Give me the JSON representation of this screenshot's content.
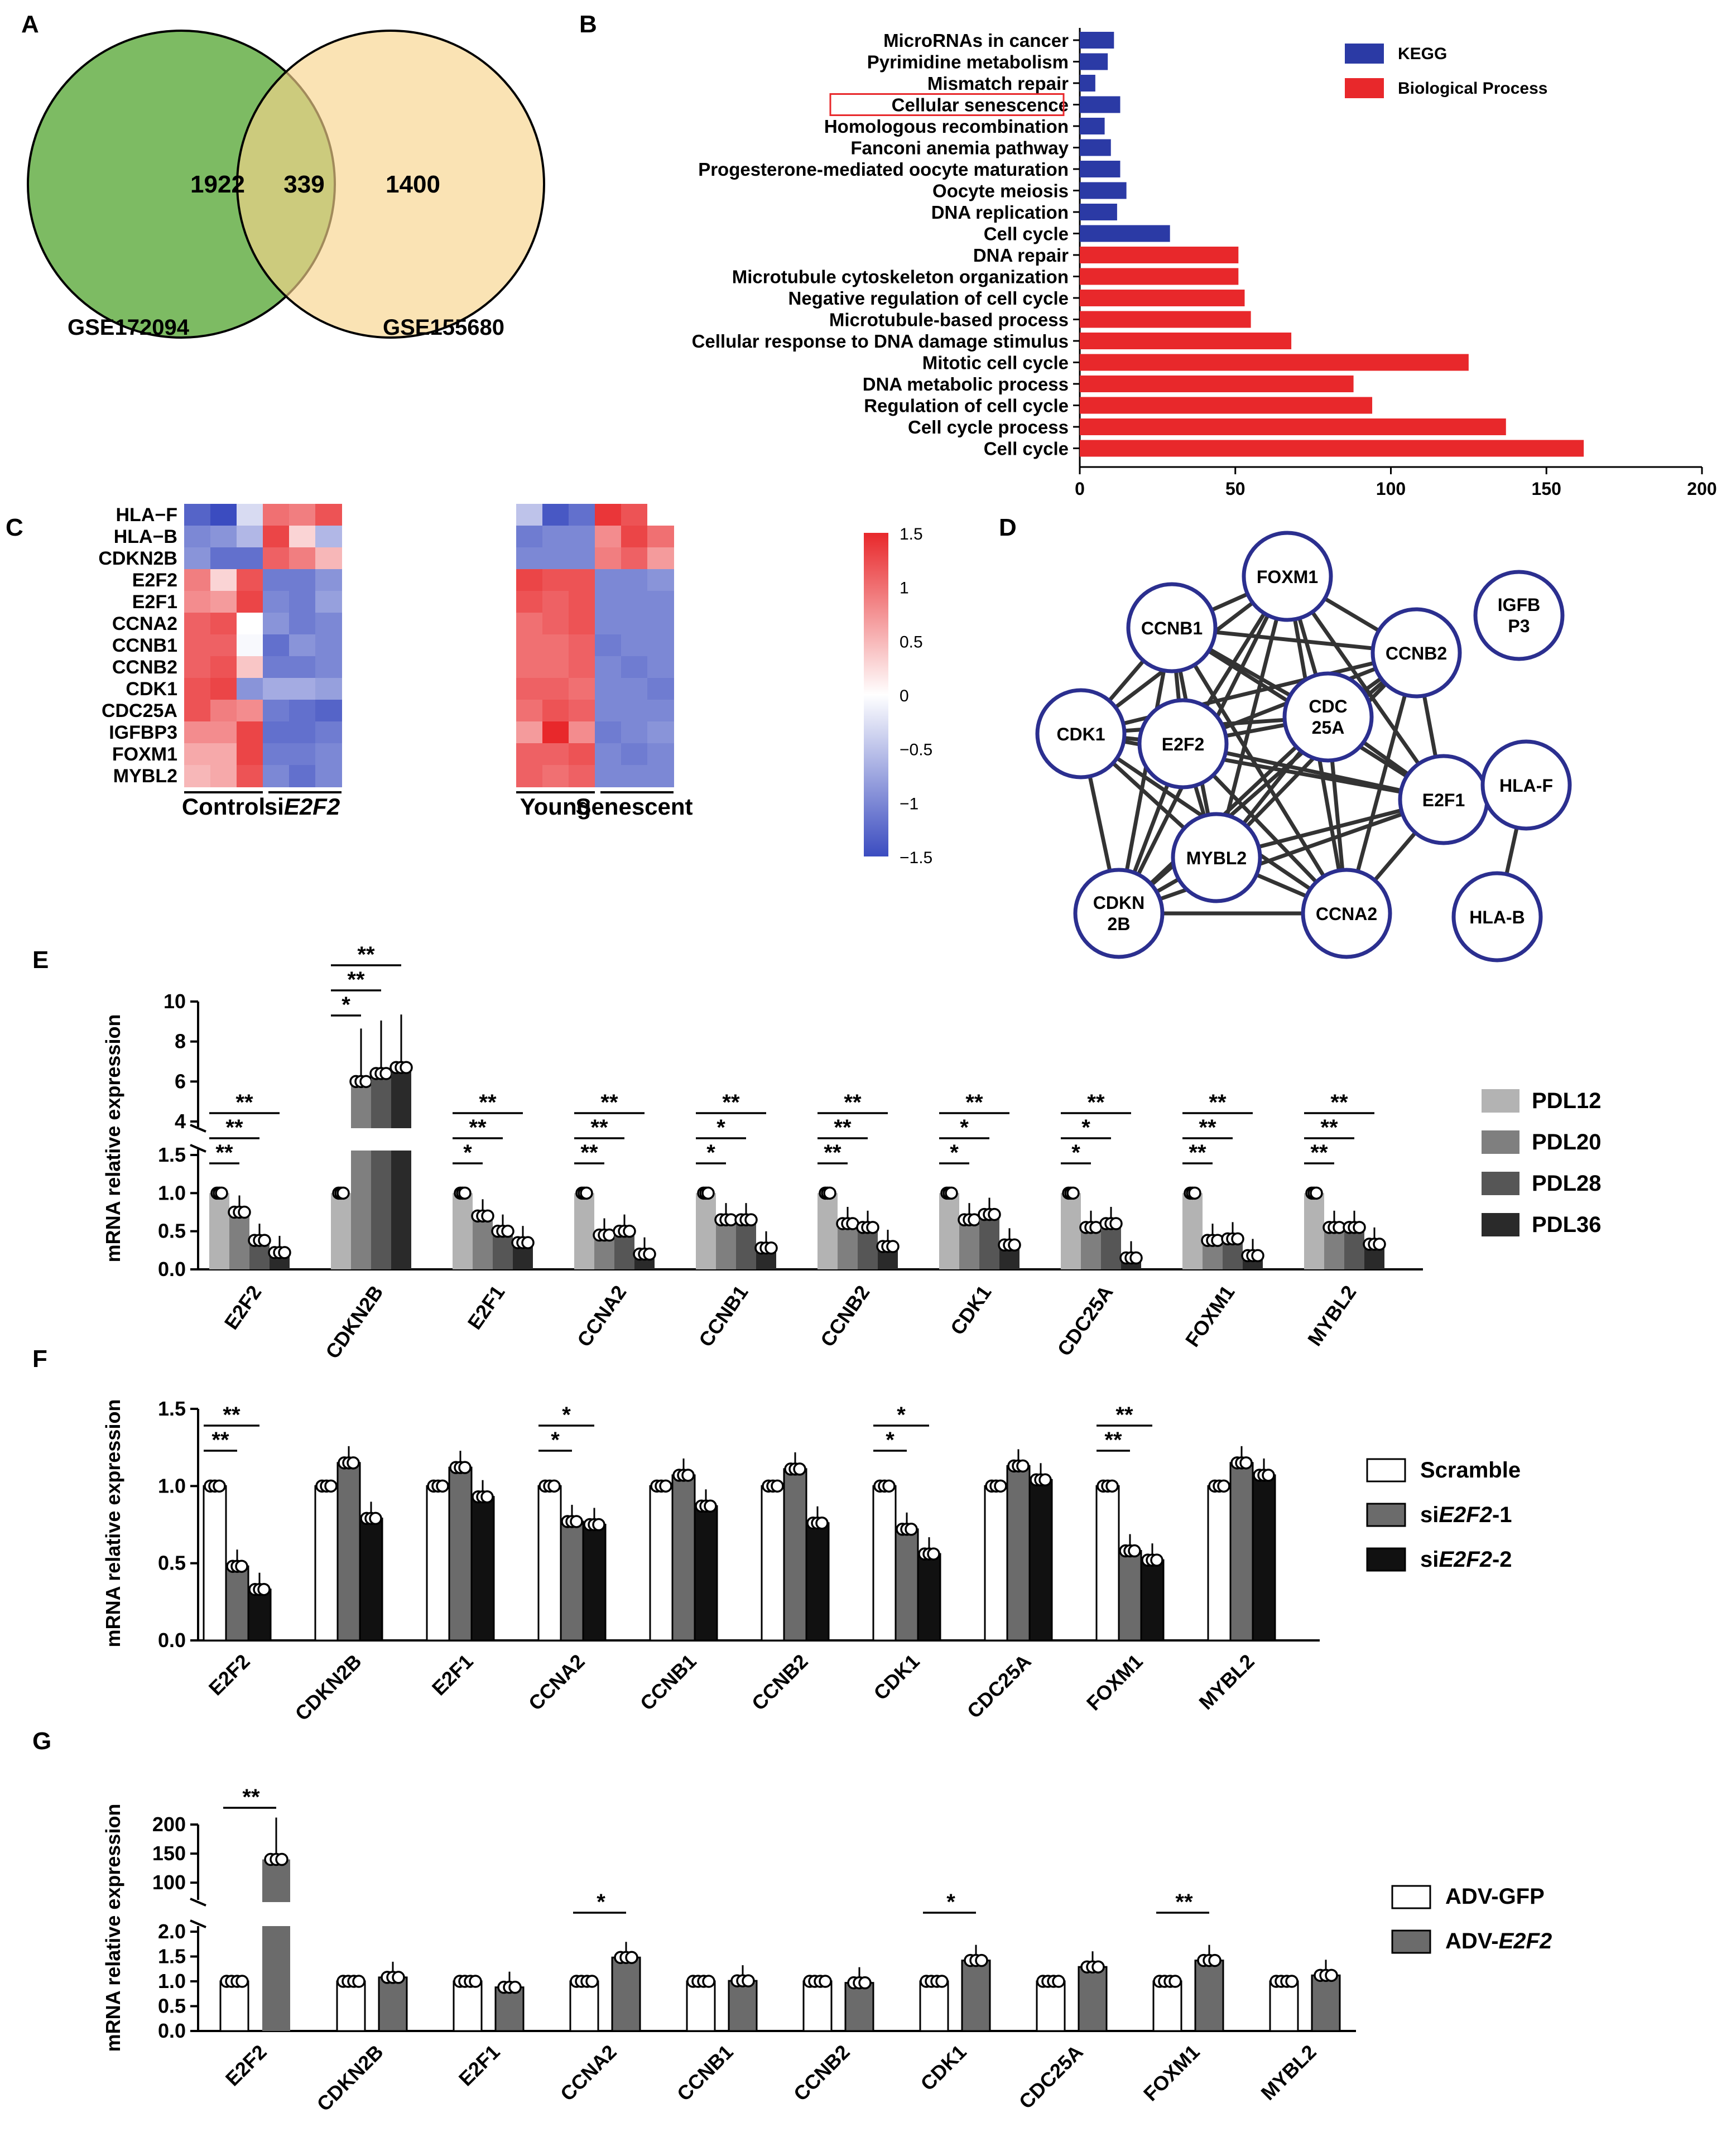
{
  "panels": {
    "A": "A",
    "B": "B",
    "C": "C",
    "D": "D",
    "E": "E",
    "F": "F",
    "G": "G"
  },
  "venn": {
    "left_only": "1922",
    "overlap": "339",
    "right_only": "1400",
    "left_label": "GSE172094",
    "right_label": "GSE155680",
    "left_color": "#7dbb63",
    "right_color": "#f8d48c"
  },
  "chart_data": [
    {
      "panel": "B",
      "type": "bar",
      "orientation": "horizontal",
      "categories": [
        "MicroRNAs in cancer",
        "Pyrimidine metabolism",
        "Mismatch repair",
        "Cellular senescence",
        "Homologous recombination",
        "Fanconi anemia pathway",
        "Progesterone-mediated oocyte maturation",
        "Oocyte meiosis",
        "DNA replication",
        "Cell cycle",
        "DNA repair",
        "Microtubule cytoskeleton organization",
        "Negative regulation of cell cycle",
        "Microtubule-based process",
        "Cellular response to DNA damage stimulus",
        "Mitotic cell cycle",
        "DNA metabolic process",
        "Regulation of cell cycle",
        "Cell cycle process",
        "Cell cycle"
      ],
      "values": [
        11,
        9,
        5,
        13,
        8,
        10,
        13,
        15,
        12,
        29,
        51,
        51,
        53,
        55,
        68,
        125,
        88,
        94,
        137,
        162
      ],
      "groups": [
        "KEGG",
        "KEGG",
        "KEGG",
        "KEGG",
        "KEGG",
        "KEGG",
        "KEGG",
        "KEGG",
        "KEGG",
        "KEGG",
        "BP",
        "BP",
        "BP",
        "BP",
        "BP",
        "BP",
        "BP",
        "BP",
        "BP",
        "BP"
      ],
      "legend": [
        {
          "name": "KEGG",
          "color": "#2b3aa5"
        },
        {
          "name": "Biological Process",
          "color": "#e8282b"
        }
      ],
      "highlight": "Cellular senescence",
      "xlim": [
        0,
        200
      ],
      "xticks": [
        "0",
        "50",
        "100",
        "150",
        "200"
      ]
    },
    {
      "panel": "C",
      "type": "heatmap",
      "rows": [
        "HLA−F",
        "HLA−B",
        "CDKN2B",
        "E2F2",
        "E2F1",
        "CCNA2",
        "CCNB1",
        "CCNB2",
        "CDK1",
        "CDC25A",
        "IGFBP3",
        "FOXM1",
        "MYBL2"
      ],
      "groups": [
        "Control",
        "siE2F2",
        "Young",
        "Senescent"
      ],
      "left": [
        [
          -1.3,
          -1.5,
          -0.3,
          1.0,
          0.9,
          1.2
        ],
        [
          -1.0,
          -0.9,
          -0.6,
          1.3,
          0.3,
          -0.6
        ],
        [
          -0.9,
          -1.2,
          -1.2,
          1.1,
          0.9,
          0.5
        ],
        [
          0.9,
          0.3,
          1.2,
          -1.1,
          -1.1,
          -0.9
        ],
        [
          0.8,
          0.7,
          1.3,
          -1.0,
          -1.1,
          -0.8
        ],
        [
          1.1,
          1.2,
          0.0,
          -0.9,
          -1.1,
          -1.0
        ],
        [
          1.1,
          1.1,
          -0.05,
          -1.2,
          -0.9,
          -1.0
        ],
        [
          1.1,
          1.2,
          0.4,
          -1.1,
          -1.1,
          -1.0
        ],
        [
          1.2,
          1.3,
          -0.9,
          -0.7,
          -0.7,
          -0.8
        ],
        [
          1.2,
          0.9,
          0.8,
          -1.1,
          -1.2,
          -1.3
        ],
        [
          0.8,
          0.8,
          1.3,
          -1.2,
          -1.2,
          -1.1
        ],
        [
          0.6,
          0.6,
          1.3,
          -1.1,
          -1.1,
          -1.0
        ],
        [
          0.5,
          0.6,
          1.2,
          -1.0,
          -1.2,
          -1.0
        ]
      ],
      "right": [
        [
          -0.5,
          -1.4,
          -1.2,
          1.4,
          1.2,
          0.0
        ],
        [
          -1.1,
          -1.0,
          -1.0,
          0.8,
          1.3,
          1.0
        ],
        [
          -1.0,
          -1.0,
          -1.0,
          0.9,
          1.1,
          0.7
        ],
        [
          1.3,
          1.2,
          1.2,
          -1.0,
          -1.0,
          -0.9
        ],
        [
          1.2,
          1.1,
          1.2,
          -1.0,
          -1.0,
          -1.0
        ],
        [
          1.0,
          1.1,
          1.2,
          -1.0,
          -1.0,
          -1.0
        ],
        [
          1.0,
          1.0,
          1.1,
          -1.1,
          -1.0,
          -1.0
        ],
        [
          1.0,
          1.0,
          1.1,
          -1.0,
          -1.1,
          -1.0
        ],
        [
          1.1,
          1.1,
          1.0,
          -1.0,
          -1.0,
          -1.1
        ],
        [
          1.0,
          1.2,
          1.1,
          -1.0,
          -1.0,
          -1.0
        ],
        [
          0.7,
          1.5,
          0.8,
          -1.1,
          -1.0,
          -0.9
        ],
        [
          1.1,
          1.1,
          1.2,
          -1.0,
          -1.1,
          -1.0
        ],
        [
          1.1,
          1.0,
          1.1,
          -1.0,
          -1.0,
          -1.0
        ]
      ],
      "scale": {
        "min": -1.5,
        "max": 1.5,
        "ticks": [
          "1.5",
          "1",
          "0.5",
          "0",
          "−0.5",
          "−1",
          "−1.5"
        ],
        "low_color": "#3b4cc0",
        "mid_color": "#ffffff",
        "high_color": "#e8282b"
      }
    },
    {
      "panel": "E",
      "type": "bar",
      "ylabel": "mRNA relative expression",
      "categories": [
        "E2F2",
        "CDKN2B",
        "E2F1",
        "CCNA2",
        "CCNB1",
        "CCNB2",
        "CDK1",
        "CDC25A",
        "FOXM1",
        "MYBL2"
      ],
      "series": [
        {
          "name": "PDL12",
          "color": "#b3b3b3",
          "values": [
            1,
            1,
            1,
            1,
            1,
            1,
            1,
            1,
            1,
            1
          ]
        },
        {
          "name": "PDL20",
          "color": "#7f7f7f",
          "values": [
            0.75,
            6.0,
            0.7,
            0.45,
            0.65,
            0.6,
            0.65,
            0.55,
            0.38,
            0.55
          ]
        },
        {
          "name": "PDL28",
          "color": "#565656",
          "values": [
            0.38,
            6.4,
            0.5,
            0.5,
            0.65,
            0.55,
            0.72,
            0.6,
            0.4,
            0.55
          ]
        },
        {
          "name": "PDL36",
          "color": "#2a2a2a",
          "values": [
            0.22,
            6.7,
            0.35,
            0.2,
            0.28,
            0.3,
            0.32,
            0.15,
            0.18,
            0.33
          ]
        }
      ],
      "ylim_lower": [
        0,
        1.5
      ],
      "yticks_lower": [
        "0.0",
        "0.5",
        "1.0",
        "1.5"
      ],
      "ylim_upper": [
        4,
        10
      ],
      "yticks_upper": [
        "4",
        "6",
        "8",
        "10"
      ],
      "significance": {
        "CDKN2B": [
          "*",
          "**",
          "**"
        ],
        "default": [
          "**",
          "**",
          "**"
        ],
        "E2F1": [
          "*",
          "**",
          "**"
        ],
        "CCNB1": [
          "*",
          "*",
          "**"
        ],
        "CDK1": [
          "*",
          "*",
          "**"
        ],
        "CDC25A": [
          "*",
          "*",
          "**"
        ]
      }
    },
    {
      "panel": "F",
      "type": "bar",
      "ylabel": "mRNA relative expression",
      "categories": [
        "E2F2",
        "CDKN2B",
        "E2F1",
        "CCNA2",
        "CCNB1",
        "CCNB2",
        "CDK1",
        "CDC25A",
        "FOXM1",
        "MYBL2"
      ],
      "series": [
        {
          "name": "Scramble",
          "values": [
            1,
            1,
            1,
            1,
            1,
            1,
            1,
            1,
            1,
            1
          ]
        },
        {
          "name": "siE2F2-1",
          "values": [
            0.48,
            1.15,
            1.12,
            0.77,
            1.07,
            1.11,
            0.72,
            1.13,
            0.58,
            1.15
          ]
        },
        {
          "name": "siE2F2-2",
          "values": [
            0.33,
            0.79,
            0.93,
            0.75,
            0.87,
            0.76,
            0.56,
            1.04,
            0.52,
            1.07
          ]
        }
      ],
      "ylim": [
        0,
        1.5
      ],
      "yticks": [
        "0.0",
        "0.5",
        "1.0",
        "1.5"
      ],
      "significance": {
        "E2F2": [
          "**",
          "**"
        ],
        "CCNA2": [
          "*",
          "*"
        ],
        "CDK1": [
          "*",
          "*"
        ],
        "FOXM1": [
          "**",
          "**"
        ]
      }
    },
    {
      "panel": "G",
      "type": "bar",
      "ylabel": "mRNA relative expression",
      "categories": [
        "E2F2",
        "CDKN2B",
        "E2F1",
        "CCNA2",
        "CCNB1",
        "CCNB2",
        "CDK1",
        "CDC25A",
        "FOXM1",
        "MYBL2"
      ],
      "series": [
        {
          "name": "ADV-GFP",
          "values": [
            1,
            1,
            1,
            1,
            1,
            1,
            1,
            1,
            1,
            1
          ]
        },
        {
          "name": "ADV-E2F2",
          "values": [
            140,
            1.08,
            0.88,
            1.48,
            1.01,
            0.97,
            1.42,
            1.29,
            1.42,
            1.12
          ]
        }
      ],
      "ylim_lower": [
        0,
        2.0
      ],
      "yticks_lower": [
        "0.0",
        "0.5",
        "1.0",
        "1.5",
        "2.0"
      ],
      "ylim_upper": [
        80,
        200
      ],
      "yticks_upper": [
        "100",
        "150",
        "200"
      ],
      "significance": {
        "E2F2": "**",
        "CCNA2": "*",
        "CDK1": "*",
        "FOXM1": "**"
      }
    }
  ],
  "network": {
    "nodes": [
      "FOXM1",
      "CCNB1",
      "CCNB2",
      "IGFB P3",
      "CDC 25A",
      "CDK1",
      "E2F2",
      "E2F1",
      "HLA-F",
      "MYBL2",
      "CDKN 2B",
      "CCNA2",
      "HLA-B"
    ],
    "edge_color": "#333333",
    "node_stroke": "#2b2f8f"
  },
  "group_labels": {
    "control": "Control",
    "si_prefix": "si",
    "si_gene": "E2F2",
    "young": "Young",
    "senescent": "Senescent"
  },
  "legend_E": [
    "PDL12",
    "PDL20",
    "PDL28",
    "PDL36"
  ],
  "legend_F": {
    "scramble": "Scramble",
    "si1_prefix": "si",
    "si1_gene": "E2F2",
    "si1_suffix": "-1",
    "si2_prefix": "si",
    "si2_gene": "E2F2",
    "si2_suffix": "-2"
  },
  "legend_G": {
    "gfp": "ADV-GFP",
    "e2f2_prefix": "ADV-",
    "e2f2_gene": "E2F2"
  }
}
